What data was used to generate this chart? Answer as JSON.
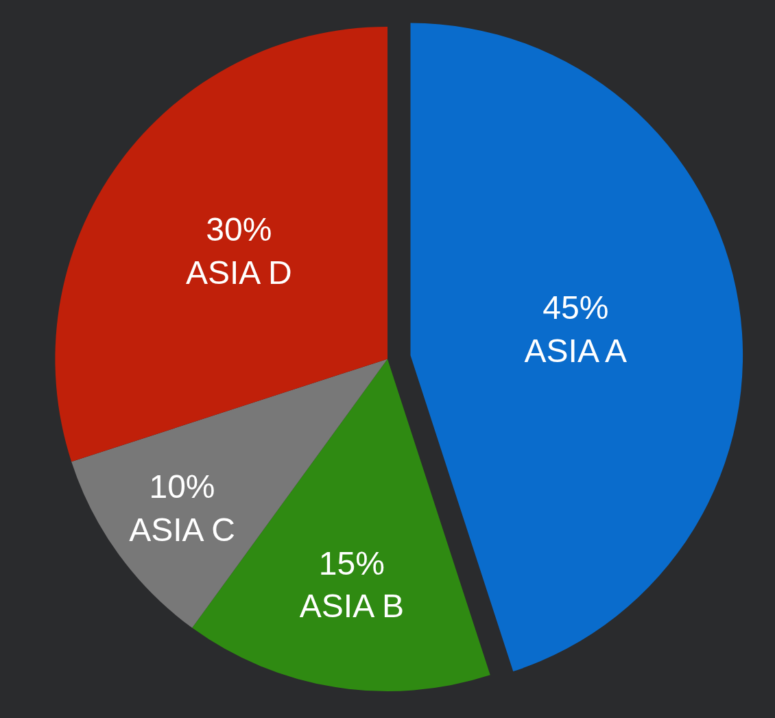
{
  "chart_data": {
    "type": "pie",
    "categories": [
      "ASIA A",
      "ASIA B",
      "ASIA C",
      "ASIA D"
    ],
    "values": [
      45,
      15,
      10,
      30
    ],
    "value_labels": [
      "45%",
      "15%",
      "10%",
      "30%"
    ],
    "colors": [
      "#0a6ccc",
      "#2f8a12",
      "#787878",
      "#c0200a"
    ],
    "legend": false
  }
}
